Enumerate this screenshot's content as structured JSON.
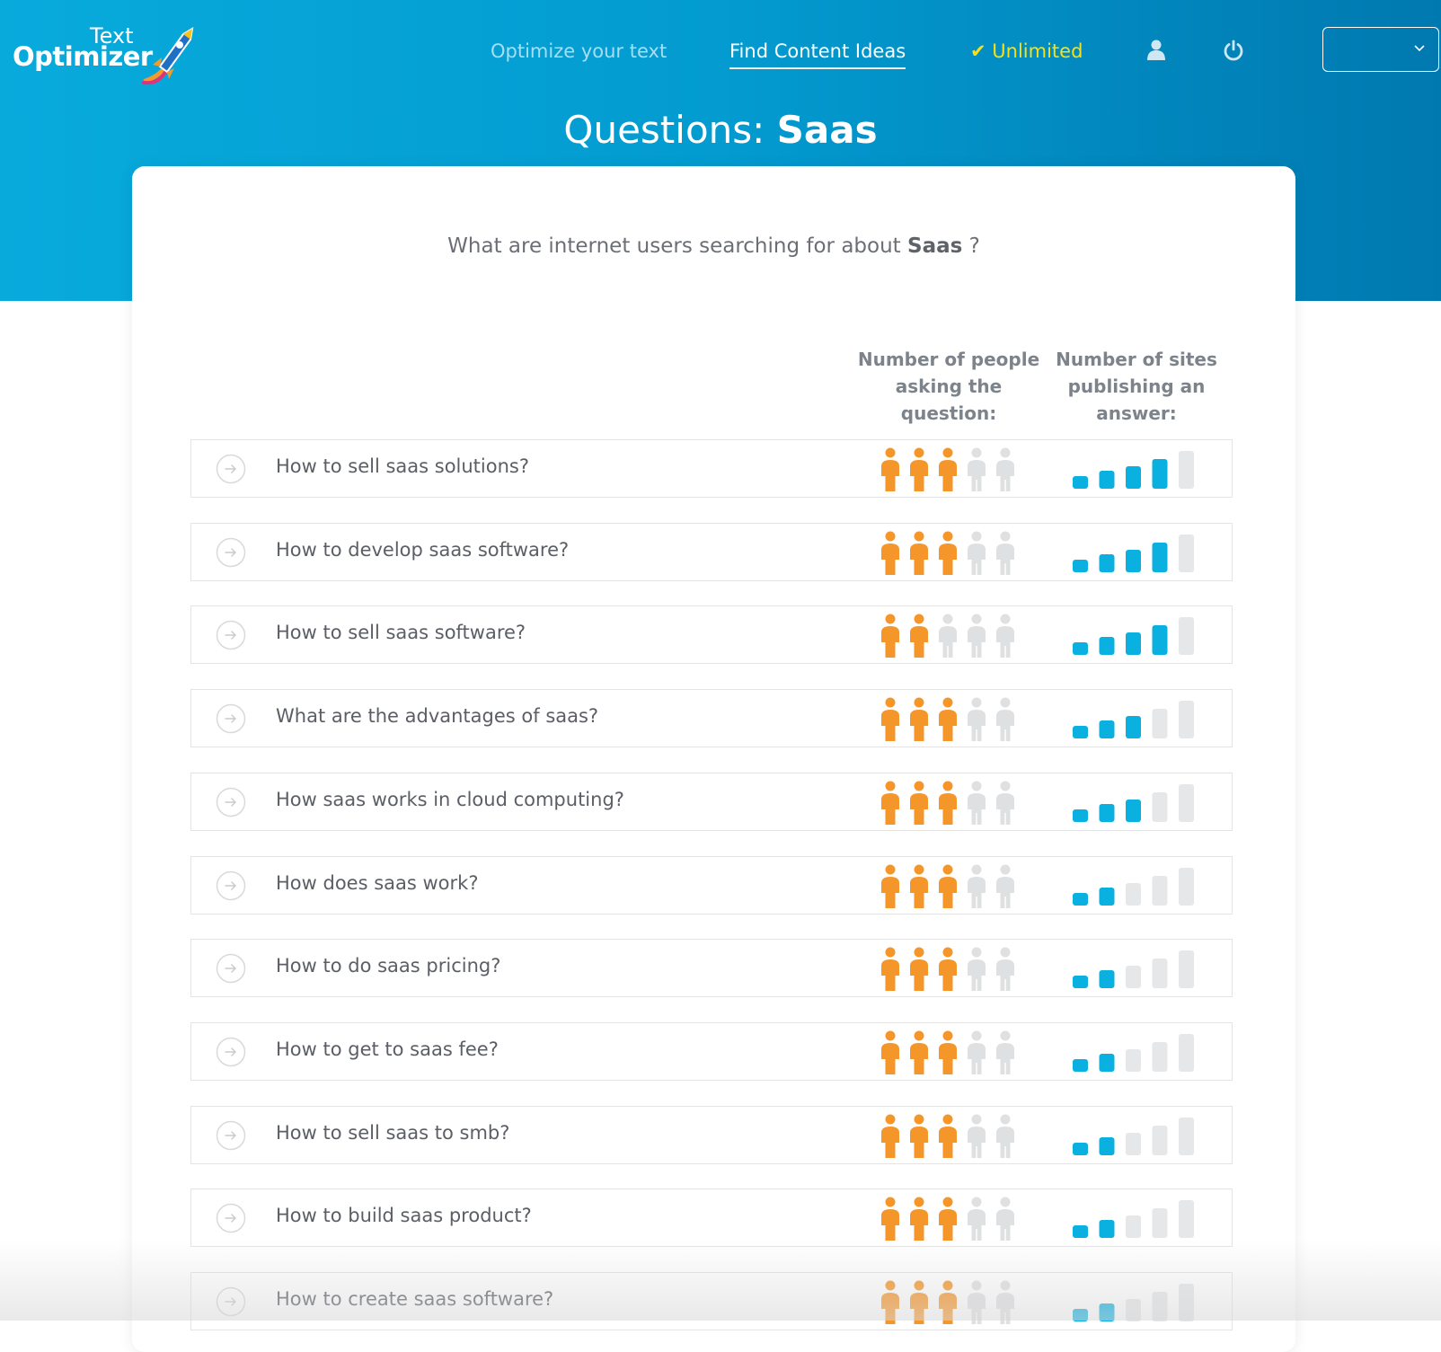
{
  "header": {
    "logo": {
      "text": "Text",
      "name": "Optimizer"
    },
    "nav": {
      "optimize": "Optimize your text",
      "find": "Find Content Ideas",
      "unlimited": "✔ Unlimited"
    },
    "user_icon": "user-icon",
    "power_icon": "power-icon",
    "language_select": {
      "value": "",
      "icon": "chevron-down-icon"
    }
  },
  "page": {
    "title_prefix": "Questions: ",
    "keyword": "Saas",
    "subtitle_prefix": "What are internet users searching for about ",
    "subtitle_suffix": " ?"
  },
  "table": {
    "people_header": "Number of people asking the question:",
    "sites_header": "Number of sites publishing an answer:",
    "max_people": 5,
    "max_sites": 5,
    "colors": {
      "people_on": "#f5962a",
      "people_off": "#dfe0e2",
      "bar_on": "#0ab0e0",
      "bar_off": "#e6e7e9"
    },
    "rows": [
      {
        "question": "How to sell saas solutions?",
        "people": 3,
        "sites": 4
      },
      {
        "question": "How to develop saas software?",
        "people": 3,
        "sites": 4
      },
      {
        "question": "How to sell saas software?",
        "people": 2,
        "sites": 4
      },
      {
        "question": "What are the advantages of saas?",
        "people": 3,
        "sites": 3
      },
      {
        "question": "How saas works in cloud computing?",
        "people": 3,
        "sites": 3
      },
      {
        "question": "How does saas work?",
        "people": 3,
        "sites": 2
      },
      {
        "question": "How to do saas pricing?",
        "people": 3,
        "sites": 2
      },
      {
        "question": "How to get to saas fee?",
        "people": 3,
        "sites": 2
      },
      {
        "question": "How to sell saas to smb?",
        "people": 3,
        "sites": 2
      },
      {
        "question": "How to build saas product?",
        "people": 3,
        "sites": 2
      },
      {
        "question": "How to create saas software?",
        "people": 3,
        "sites": 2
      }
    ]
  }
}
